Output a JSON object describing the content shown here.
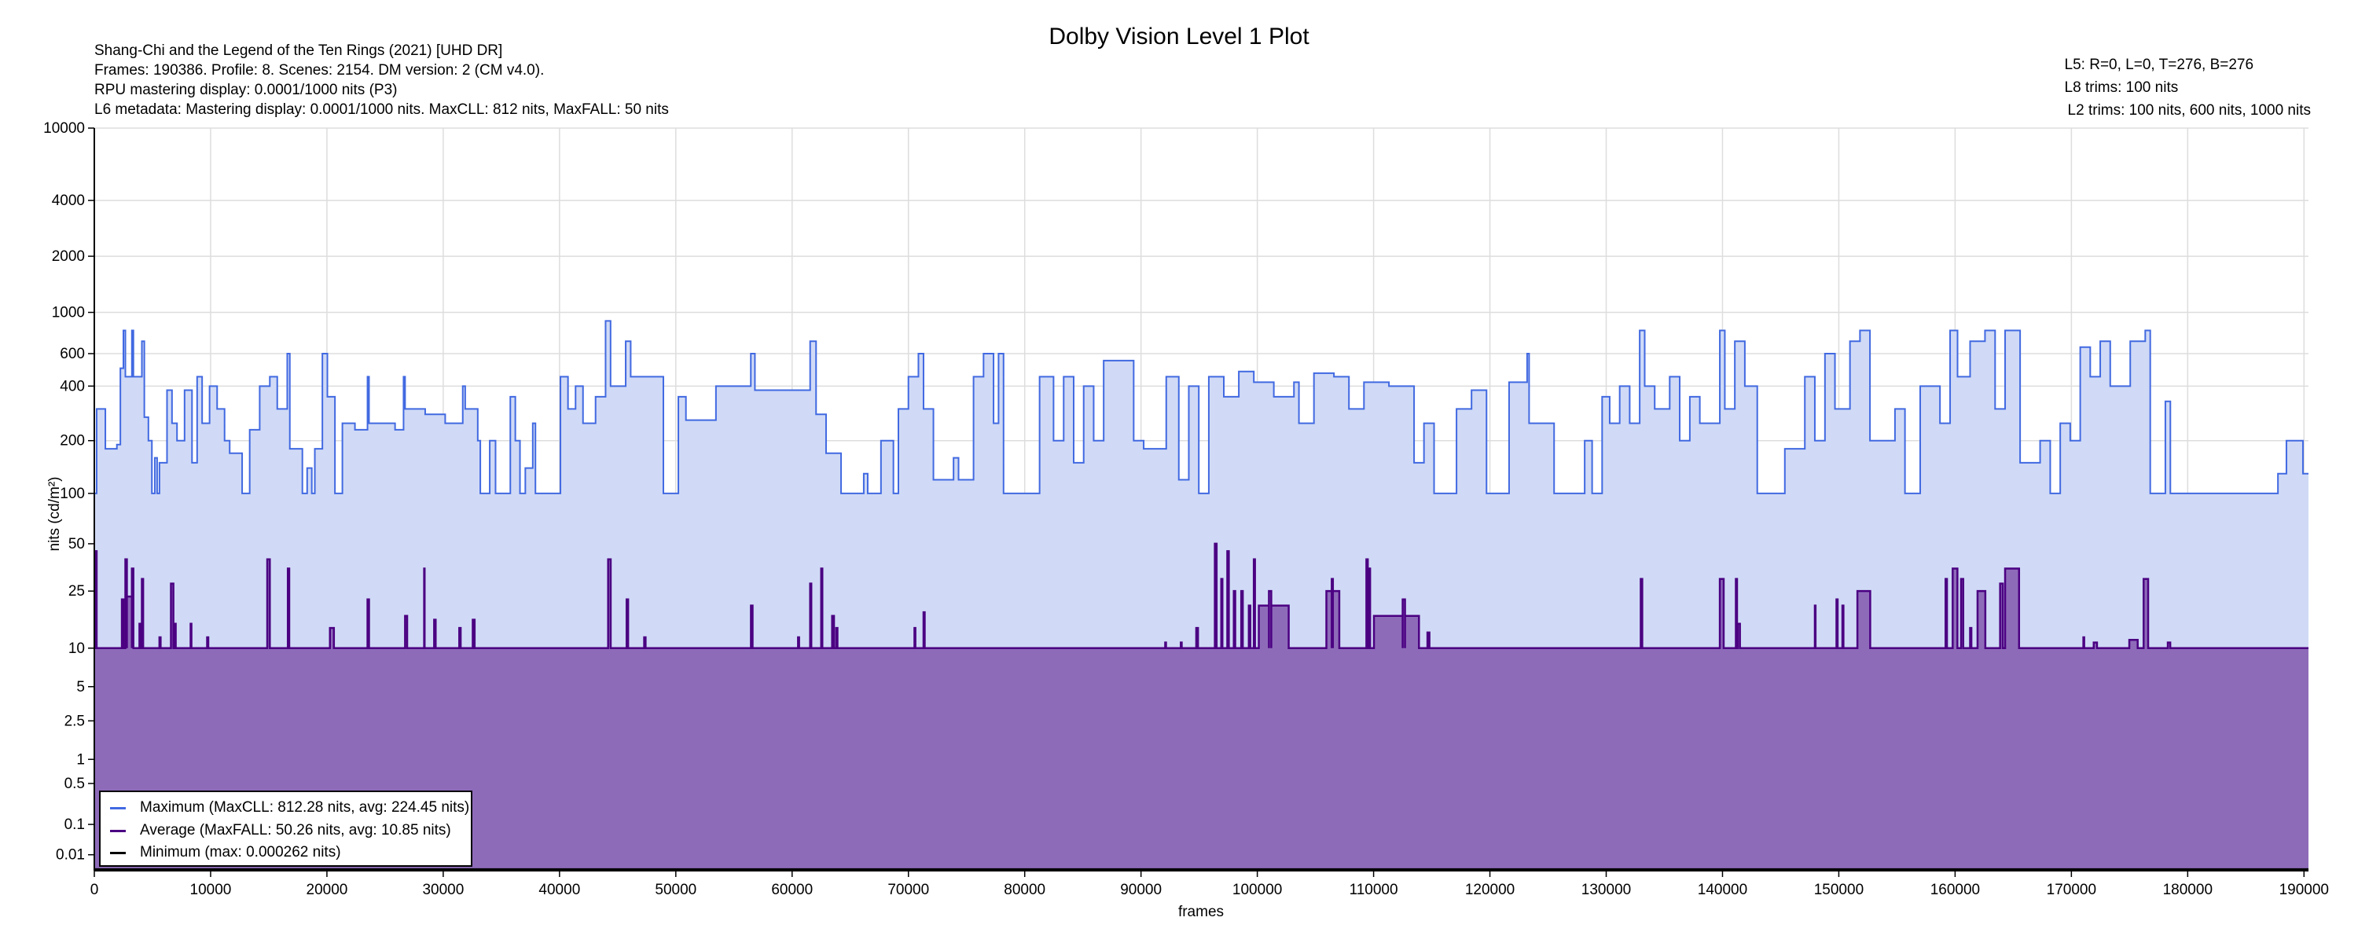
{
  "title": "Dolby Vision Level 1 Plot",
  "header_left": [
    "Shang-Chi and the Legend of the Ten Rings (2021) [UHD DR]",
    "Frames: 190386. Profile: 8. Scenes: 2154. DM version: 2 (CM v4.0).",
    "RPU mastering display: 0.0001/1000 nits  (P3)",
    "L6 metadata: Mastering display: 0.0001/1000 nits. MaxCLL: 812 nits, MaxFALL: 50 nits"
  ],
  "header_right": [
    "L5: R=0, L=0, T=276, B=276",
    "L8 trims: 100 nits",
    "L2 trims: 100 nits, 600 nits, 1000 nits"
  ],
  "legend": [
    {
      "label": "Maximum (MaxCLL: 812.28 nits, avg: 224.45 nits)",
      "color": "#4169e1"
    },
    {
      "label": "Average (MaxFALL: 50.26 nits, avg: 10.85 nits)",
      "color": "#4b0082"
    },
    {
      "label": "Minimum (max: 0.000262 nits)",
      "color": "#000000"
    }
  ],
  "colors": {
    "max_fill": "#d0daf6",
    "avg_fill": "#8e6bb9",
    "grid": "#dddddd"
  },
  "chart_data": {
    "type": "area",
    "title": "Dolby Vision Level 1 Plot",
    "xlabel": "frames",
    "ylabel": "nits (cd/m²)",
    "y_scale": "PQ",
    "xlim": [
      0,
      190386
    ],
    "ylim": [
      0,
      10000
    ],
    "grid": true,
    "legend_position": "bottom-left",
    "x_ticks": [
      0,
      10000,
      20000,
      30000,
      40000,
      50000,
      60000,
      70000,
      80000,
      90000,
      100000,
      110000,
      120000,
      130000,
      140000,
      150000,
      160000,
      170000,
      180000,
      190000
    ],
    "y_ticks": [
      {
        "v": 10000,
        "label": "10000"
      },
      {
        "v": 4000,
        "label": "4000"
      },
      {
        "v": 2000,
        "label": "2000"
      },
      {
        "v": 1000,
        "label": "1000"
      },
      {
        "v": 600,
        "label": "600"
      },
      {
        "v": 400,
        "label": "400"
      },
      {
        "v": 200,
        "label": "200"
      },
      {
        "v": 100,
        "label": "100"
      },
      {
        "v": 50,
        "label": "50"
      },
      {
        "v": 25,
        "label": "25"
      },
      {
        "v": 10,
        "label": "10"
      },
      {
        "v": 5,
        "label": "5"
      },
      {
        "v": 2.5,
        "label": "2.5"
      },
      {
        "v": 1,
        "label": "1"
      },
      {
        "v": 0.5,
        "label": "0.5"
      },
      {
        "v": 0.1,
        "label": "0.1"
      },
      {
        "v": 0.01,
        "label": "0.01"
      }
    ],
    "series": [
      {
        "name": "Maximum",
        "steps": [
          [
            0,
            100
          ],
          [
            200,
            300
          ],
          [
            950,
            180
          ],
          [
            1940,
            190
          ],
          [
            2240,
            500
          ],
          [
            2500,
            800
          ],
          [
            2670,
            450
          ],
          [
            3230,
            800
          ],
          [
            3360,
            450
          ],
          [
            4090,
            700
          ],
          [
            4300,
            270
          ],
          [
            4650,
            200
          ],
          [
            4950,
            100
          ],
          [
            5200,
            160
          ],
          [
            5400,
            100
          ],
          [
            5600,
            150
          ],
          [
            6250,
            380
          ],
          [
            6680,
            250
          ],
          [
            7110,
            200
          ],
          [
            7760,
            380
          ],
          [
            8400,
            150
          ],
          [
            8840,
            450
          ],
          [
            9270,
            250
          ],
          [
            9910,
            400
          ],
          [
            10560,
            300
          ],
          [
            11200,
            200
          ],
          [
            11640,
            170
          ],
          [
            12710,
            100
          ],
          [
            13360,
            230
          ],
          [
            14220,
            400
          ],
          [
            15090,
            450
          ],
          [
            15730,
            300
          ],
          [
            16590,
            600
          ],
          [
            16810,
            180
          ],
          [
            17890,
            100
          ],
          [
            18300,
            140
          ],
          [
            18700,
            100
          ],
          [
            18960,
            180
          ],
          [
            19610,
            600
          ],
          [
            20040,
            350
          ],
          [
            20690,
            100
          ],
          [
            21330,
            250
          ],
          [
            22410,
            230
          ],
          [
            23490,
            450
          ],
          [
            23620,
            250
          ],
          [
            25860,
            230
          ],
          [
            26590,
            450
          ],
          [
            26720,
            300
          ],
          [
            28450,
            280
          ],
          [
            30170,
            250
          ],
          [
            31680,
            400
          ],
          [
            31890,
            300
          ],
          [
            32970,
            200
          ],
          [
            33190,
            100
          ],
          [
            34000,
            200
          ],
          [
            34500,
            100
          ],
          [
            35770,
            350
          ],
          [
            36200,
            200
          ],
          [
            36600,
            100
          ],
          [
            37060,
            140
          ],
          [
            37700,
            250
          ],
          [
            37930,
            100
          ],
          [
            40080,
            450
          ],
          [
            40730,
            300
          ],
          [
            41380,
            400
          ],
          [
            42020,
            250
          ],
          [
            43100,
            350
          ],
          [
            43960,
            900
          ],
          [
            44390,
            400
          ],
          [
            45690,
            700
          ],
          [
            46120,
            450
          ],
          [
            48930,
            100
          ],
          [
            50220,
            350
          ],
          [
            50870,
            260
          ],
          [
            53450,
            400
          ],
          [
            56450,
            600
          ],
          [
            56800,
            380
          ],
          [
            61550,
            700
          ],
          [
            62060,
            280
          ],
          [
            62920,
            170
          ],
          [
            64210,
            100
          ],
          [
            66160,
            130
          ],
          [
            66500,
            100
          ],
          [
            67640,
            200
          ],
          [
            68710,
            100
          ],
          [
            69140,
            300
          ],
          [
            70000,
            450
          ],
          [
            70860,
            600
          ],
          [
            71300,
            300
          ],
          [
            72150,
            120
          ],
          [
            73880,
            160
          ],
          [
            74310,
            120
          ],
          [
            75600,
            450
          ],
          [
            76460,
            600
          ],
          [
            77320,
            250
          ],
          [
            77750,
            600
          ],
          [
            78180,
            100
          ],
          [
            81280,
            450
          ],
          [
            82480,
            200
          ],
          [
            83350,
            450
          ],
          [
            84210,
            150
          ],
          [
            85070,
            400
          ],
          [
            85930,
            200
          ],
          [
            86790,
            550
          ],
          [
            89370,
            200
          ],
          [
            90230,
            180
          ],
          [
            92170,
            450
          ],
          [
            93250,
            120
          ],
          [
            94110,
            400
          ],
          [
            94970,
            100
          ],
          [
            95830,
            450
          ],
          [
            97120,
            350
          ],
          [
            98410,
            480
          ],
          [
            99700,
            420
          ],
          [
            101420,
            350
          ],
          [
            103150,
            420
          ],
          [
            103580,
            250
          ],
          [
            104870,
            470
          ],
          [
            106590,
            450
          ],
          [
            107880,
            300
          ],
          [
            109170,
            420
          ],
          [
            111320,
            400
          ],
          [
            113480,
            150
          ],
          [
            114330,
            250
          ],
          [
            115200,
            100
          ],
          [
            117130,
            300
          ],
          [
            118420,
            380
          ],
          [
            119710,
            100
          ],
          [
            121650,
            420
          ],
          [
            123200,
            600
          ],
          [
            123370,
            250
          ],
          [
            125520,
            100
          ],
          [
            128150,
            200
          ],
          [
            128790,
            100
          ],
          [
            129650,
            350
          ],
          [
            130300,
            250
          ],
          [
            131160,
            400
          ],
          [
            132020,
            250
          ],
          [
            132880,
            800
          ],
          [
            133310,
            400
          ],
          [
            134170,
            300
          ],
          [
            135460,
            450
          ],
          [
            136320,
            200
          ],
          [
            137190,
            350
          ],
          [
            138050,
            250
          ],
          [
            139770,
            800
          ],
          [
            140200,
            300
          ],
          [
            141060,
            700
          ],
          [
            141920,
            400
          ],
          [
            142990,
            100
          ],
          [
            145360,
            180
          ],
          [
            147080,
            450
          ],
          [
            147940,
            200
          ],
          [
            148810,
            600
          ],
          [
            149670,
            300
          ],
          [
            150960,
            700
          ],
          [
            151820,
            800
          ],
          [
            152680,
            200
          ],
          [
            154830,
            300
          ],
          [
            155690,
            100
          ],
          [
            157000,
            400
          ],
          [
            158700,
            250
          ],
          [
            159570,
            800
          ],
          [
            160210,
            450
          ],
          [
            161290,
            700
          ],
          [
            162570,
            800
          ],
          [
            163440,
            300
          ],
          [
            164300,
            800
          ],
          [
            165590,
            150
          ],
          [
            167310,
            200
          ],
          [
            168180,
            100
          ],
          [
            169040,
            250
          ],
          [
            169900,
            200
          ],
          [
            170760,
            650
          ],
          [
            171620,
            450
          ],
          [
            172480,
            700
          ],
          [
            173340,
            400
          ],
          [
            175060,
            700
          ],
          [
            176350,
            800
          ],
          [
            176780,
            100
          ],
          [
            178080,
            330
          ],
          [
            178510,
            100
          ],
          [
            187760,
            130
          ],
          [
            188490,
            200
          ],
          [
            189910,
            130
          ]
        ]
      },
      {
        "name": "Average",
        "baseline": 10,
        "spikes": [
          [
            80,
            200,
            45
          ],
          [
            2370,
            2500,
            22
          ],
          [
            2670,
            2800,
            40
          ],
          [
            2800,
            3230,
            23
          ],
          [
            3230,
            3360,
            35
          ],
          [
            3880,
            3960,
            15
          ],
          [
            4090,
            4200,
            30
          ],
          [
            5600,
            5700,
            12
          ],
          [
            6590,
            6800,
            28
          ],
          [
            6900,
            7000,
            15
          ],
          [
            8280,
            8350,
            15
          ],
          [
            9700,
            9800,
            12
          ],
          [
            14870,
            15090,
            40
          ],
          [
            16640,
            16760,
            35
          ],
          [
            20260,
            20600,
            14
          ],
          [
            23490,
            23620,
            22
          ],
          [
            26720,
            26900,
            17
          ],
          [
            28360,
            28400,
            35
          ],
          [
            29220,
            29350,
            16
          ],
          [
            31380,
            31500,
            14
          ],
          [
            32540,
            32700,
            16
          ],
          [
            44180,
            44400,
            40
          ],
          [
            45770,
            45900,
            22
          ],
          [
            47280,
            47400,
            12
          ],
          [
            56460,
            56600,
            20
          ],
          [
            60510,
            60600,
            12
          ],
          [
            61550,
            61650,
            28
          ],
          [
            62500,
            62600,
            35
          ],
          [
            63440,
            63600,
            17
          ],
          [
            63790,
            63900,
            14
          ],
          [
            70520,
            70600,
            14
          ],
          [
            71300,
            71400,
            18
          ],
          [
            92080,
            92150,
            11
          ],
          [
            93420,
            93500,
            11
          ],
          [
            94750,
            94900,
            14
          ],
          [
            96350,
            96500,
            50
          ],
          [
            96900,
            97000,
            30
          ],
          [
            97420,
            97550,
            45
          ],
          [
            97980,
            98100,
            25
          ],
          [
            98620,
            98750,
            25
          ],
          [
            99270,
            99400,
            20
          ],
          [
            99700,
            99800,
            40
          ],
          [
            100130,
            101000,
            20
          ],
          [
            101000,
            101200,
            25
          ],
          [
            101200,
            102700,
            20
          ],
          [
            105940,
            106400,
            25
          ],
          [
            106400,
            106500,
            30
          ],
          [
            106500,
            107050,
            25
          ],
          [
            109380,
            109500,
            40
          ],
          [
            109600,
            109700,
            35
          ],
          [
            110030,
            112500,
            17
          ],
          [
            112500,
            112700,
            22
          ],
          [
            112700,
            113900,
            17
          ],
          [
            114630,
            114800,
            13
          ],
          [
            132970,
            133100,
            30
          ],
          [
            139770,
            140100,
            30
          ],
          [
            141150,
            141250,
            30
          ],
          [
            141310,
            141500,
            15
          ],
          [
            147940,
            148000,
            20
          ],
          [
            149800,
            149900,
            22
          ],
          [
            150310,
            150400,
            20
          ],
          [
            151600,
            152700,
            25
          ],
          [
            159180,
            159300,
            30
          ],
          [
            159790,
            160200,
            35
          ],
          [
            160510,
            160700,
            30
          ],
          [
            161290,
            161400,
            14
          ],
          [
            161930,
            162600,
            25
          ],
          [
            163870,
            164100,
            28
          ],
          [
            164300,
            165500,
            35
          ],
          [
            171030,
            171100,
            12
          ],
          [
            171920,
            172200,
            11
          ],
          [
            174980,
            175700,
            11.5
          ],
          [
            176210,
            176600,
            30
          ],
          [
            178290,
            178500,
            11
          ]
        ]
      },
      {
        "name": "Minimum",
        "max": 0.000262,
        "typical": 0.0001
      }
    ]
  }
}
